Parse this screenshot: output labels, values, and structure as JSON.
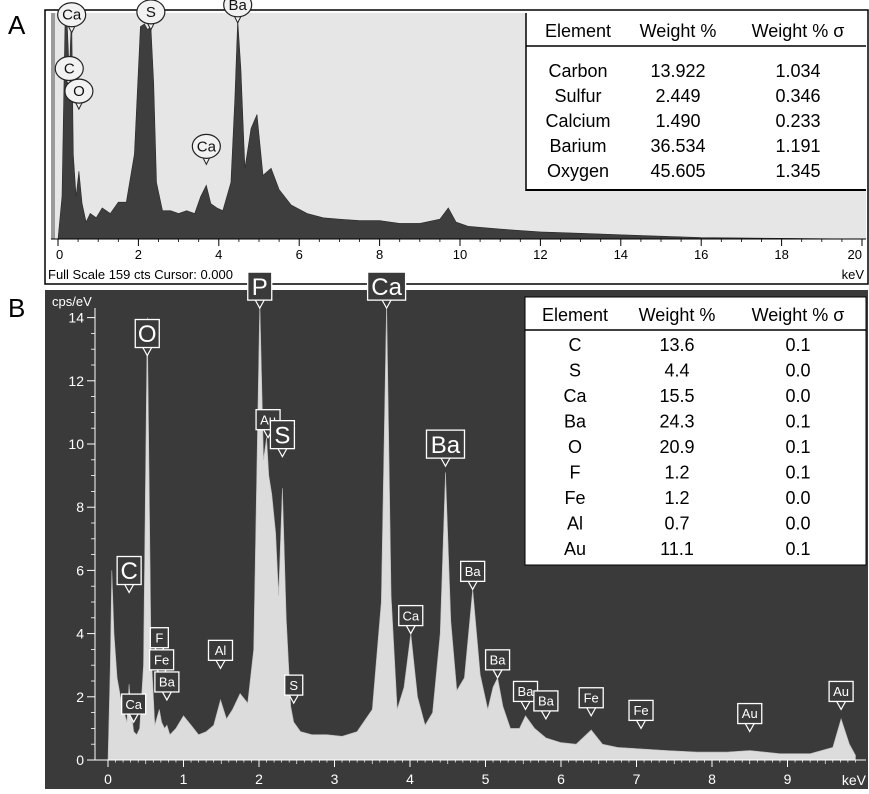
{
  "panel_labels": {
    "a": "A",
    "b": "B"
  },
  "colors": {
    "panel_a_bg": "#e6e6e6",
    "panel_a_fill": "#3e3e3e",
    "panel_b_bg": "#3a3a3a",
    "panel_b_fill": "#dcdcdc",
    "frame": "#000000"
  },
  "panel_a": {
    "status_text": "Full Scale 159 cts Cursor: 0.000",
    "unit_label": "keV",
    "table": {
      "headers": [
        "Element",
        "Weight %",
        "Weight % σ"
      ],
      "rows": [
        [
          "Carbon",
          "13.922",
          "1.034"
        ],
        [
          "Sulfur",
          "2.449",
          "0.346"
        ],
        [
          "Calcium",
          "1.490",
          "0.233"
        ],
        [
          "Barium",
          "36.534",
          "1.191"
        ],
        [
          "Oxygen",
          "45.605",
          "1.345"
        ]
      ]
    },
    "peak_labels": [
      {
        "text": "Ca",
        "x": 0.34,
        "y": 150
      },
      {
        "text": "C",
        "x": 0.28,
        "y": 112
      },
      {
        "text": "O",
        "x": 0.52,
        "y": 96
      },
      {
        "text": "S",
        "x": 2.31,
        "y": 152
      },
      {
        "text": "Ba",
        "x": 4.47,
        "y": 157
      },
      {
        "text": "Ca",
        "x": 3.69,
        "y": 57
      }
    ]
  },
  "panel_b": {
    "y_unit_label": "cps/eV",
    "x_unit_label": "keV",
    "table": {
      "headers": [
        "Element",
        "Weight %",
        "Weight % σ"
      ],
      "rows": [
        [
          "C",
          "13.6",
          "0.1"
        ],
        [
          "S",
          "4.4",
          "0.0"
        ],
        [
          "Ca",
          "15.5",
          "0.0"
        ],
        [
          "Ba",
          "24.3",
          "0.1"
        ],
        [
          "O",
          "20.9",
          "0.1"
        ],
        [
          "F",
          "1.2",
          "0.1"
        ],
        [
          "Fe",
          "1.2",
          "0.0"
        ],
        [
          "Al",
          "0.7",
          "0.0"
        ],
        [
          "Au",
          "11.1",
          "0.1"
        ]
      ]
    },
    "peak_labels": [
      {
        "text": "O",
        "x": 0.52,
        "y": 12.8,
        "size": "large"
      },
      {
        "text": "P",
        "x": 2.01,
        "y": 14.3,
        "size": "large"
      },
      {
        "text": "Ca",
        "x": 3.69,
        "y": 14.3,
        "size": "large"
      },
      {
        "text": "Au",
        "x": 2.12,
        "y": 10.2,
        "size": "small"
      },
      {
        "text": "S",
        "x": 2.31,
        "y": 9.6,
        "size": "large"
      },
      {
        "text": "Ba",
        "x": 4.47,
        "y": 9.3,
        "size": "large"
      },
      {
        "text": "C",
        "x": 0.28,
        "y": 5.3,
        "size": "large"
      },
      {
        "text": "F",
        "x": 0.68,
        "y": 3.3,
        "size": "small"
      },
      {
        "text": "Fe",
        "x": 0.71,
        "y": 2.6,
        "size": "small"
      },
      {
        "text": "Ba",
        "x": 0.78,
        "y": 1.9,
        "size": "small"
      },
      {
        "text": "Ca",
        "x": 0.34,
        "y": 1.2,
        "size": "small"
      },
      {
        "text": "Al",
        "x": 1.49,
        "y": 2.9,
        "size": "small"
      },
      {
        "text": "S",
        "x": 2.46,
        "y": 1.8,
        "size": "small"
      },
      {
        "text": "Ca",
        "x": 4.01,
        "y": 4.0,
        "size": "small"
      },
      {
        "text": "Ba",
        "x": 4.83,
        "y": 5.4,
        "size": "small"
      },
      {
        "text": "Ba",
        "x": 5.16,
        "y": 2.6,
        "size": "small"
      },
      {
        "text": "Ba",
        "x": 5.53,
        "y": 1.6,
        "size": "small"
      },
      {
        "text": "Ba",
        "x": 5.8,
        "y": 1.3,
        "size": "small"
      },
      {
        "text": "Fe",
        "x": 6.4,
        "y": 1.4,
        "size": "small"
      },
      {
        "text": "Fe",
        "x": 7.06,
        "y": 1.0,
        "size": "small"
      },
      {
        "text": "Au",
        "x": 8.5,
        "y": 0.9,
        "size": "small"
      },
      {
        "text": "Au",
        "x": 9.71,
        "y": 1.6,
        "size": "small"
      }
    ]
  },
  "chart_data": [
    {
      "type": "area",
      "panel": "A",
      "title": "",
      "xlabel": "keV",
      "ylabel": "",
      "xlim": [
        0,
        20
      ],
      "ylim": [
        0,
        159
      ],
      "x_ticks": [
        0,
        2,
        4,
        6,
        8,
        10,
        12,
        14,
        16,
        18,
        20
      ],
      "x": [
        0.0,
        0.1,
        0.18,
        0.22,
        0.26,
        0.28,
        0.31,
        0.34,
        0.38,
        0.45,
        0.52,
        0.6,
        0.7,
        0.8,
        0.95,
        1.1,
        1.3,
        1.5,
        1.7,
        1.9,
        2.05,
        2.15,
        2.23,
        2.31,
        2.38,
        2.45,
        2.6,
        2.8,
        3.0,
        3.2,
        3.4,
        3.55,
        3.69,
        3.8,
        3.95,
        4.1,
        4.3,
        4.4,
        4.47,
        4.55,
        4.65,
        4.8,
        4.95,
        5.1,
        5.3,
        5.5,
        5.8,
        6.2,
        6.6,
        7.0,
        7.5,
        8.0,
        8.5,
        9.0,
        9.5,
        9.71,
        9.9,
        10.2,
        11.0,
        12.0,
        13.0,
        14.0,
        15.0,
        16.0,
        20.0
      ],
      "y": [
        0,
        30,
        160,
        160,
        130,
        110,
        140,
        155,
        60,
        30,
        48,
        25,
        12,
        18,
        15,
        22,
        18,
        26,
        26,
        60,
        150,
        152,
        148,
        150,
        110,
        40,
        20,
        20,
        18,
        20,
        18,
        30,
        38,
        25,
        22,
        20,
        40,
        100,
        155,
        120,
        50,
        78,
        88,
        45,
        50,
        35,
        24,
        18,
        15,
        14,
        13,
        13,
        11,
        11,
        14,
        22,
        12,
        9,
        7,
        5,
        4,
        3,
        2,
        1,
        0
      ],
      "table": {
        "columns": [
          "Element",
          "Weight %",
          "Weight % σ"
        ],
        "rows": [
          [
            "Carbon",
            13.922,
            1.034
          ],
          [
            "Sulfur",
            2.449,
            0.346
          ],
          [
            "Calcium",
            1.49,
            0.233
          ],
          [
            "Barium",
            36.534,
            1.191
          ],
          [
            "Oxygen",
            45.605,
            1.345
          ]
        ]
      }
    },
    {
      "type": "area",
      "panel": "B",
      "title": "",
      "xlabel": "keV",
      "ylabel": "cps/eV",
      "xlim": [
        -0.1,
        9.9
      ],
      "ylim": [
        0,
        14.5
      ],
      "x_ticks": [
        0,
        1,
        2,
        3,
        4,
        5,
        6,
        7,
        8,
        9
      ],
      "y_ticks": [
        0,
        2,
        4,
        6,
        8,
        10,
        12,
        14
      ],
      "x": [
        0.0,
        0.03,
        0.05,
        0.08,
        0.12,
        0.18,
        0.25,
        0.28,
        0.3,
        0.34,
        0.38,
        0.42,
        0.47,
        0.52,
        0.57,
        0.62,
        0.68,
        0.71,
        0.75,
        0.78,
        0.82,
        0.9,
        1.0,
        1.1,
        1.2,
        1.3,
        1.4,
        1.49,
        1.57,
        1.65,
        1.75,
        1.85,
        1.93,
        2.01,
        2.06,
        2.1,
        2.13,
        2.17,
        2.22,
        2.26,
        2.31,
        2.36,
        2.42,
        2.46,
        2.55,
        2.7,
        2.9,
        3.1,
        3.3,
        3.5,
        3.62,
        3.69,
        3.75,
        3.83,
        3.92,
        4.01,
        4.1,
        4.2,
        4.3,
        4.4,
        4.47,
        4.54,
        4.62,
        4.72,
        4.83,
        4.93,
        5.03,
        5.1,
        5.16,
        5.23,
        5.33,
        5.45,
        5.53,
        5.65,
        5.8,
        6.0,
        6.2,
        6.4,
        6.55,
        6.75,
        7.06,
        7.4,
        7.8,
        8.2,
        8.5,
        8.9,
        9.3,
        9.6,
        9.71,
        9.82,
        9.9
      ],
      "y": [
        0,
        3.0,
        6.0,
        4.0,
        2.6,
        1.8,
        1.2,
        2.4,
        1.7,
        0.9,
        0.8,
        1.0,
        3.0,
        14.0,
        3.5,
        1.1,
        1.6,
        1.2,
        1.0,
        1.1,
        0.8,
        1.0,
        1.4,
        1.1,
        0.8,
        0.9,
        1.1,
        1.9,
        1.3,
        1.6,
        2.1,
        1.8,
        3.5,
        14.5,
        9.5,
        10.2,
        9.0,
        8.4,
        7.2,
        5.2,
        8.6,
        4.5,
        1.7,
        1.2,
        0.9,
        0.8,
        0.8,
        0.75,
        0.9,
        1.6,
        5.0,
        14.5,
        5.2,
        1.6,
        2.3,
        4.0,
        2.0,
        1.1,
        1.5,
        4.0,
        9.1,
        4.4,
        2.2,
        2.6,
        5.4,
        2.7,
        1.6,
        2.3,
        2.6,
        1.7,
        1.0,
        1.0,
        1.4,
        1.0,
        0.7,
        0.55,
        0.5,
        0.95,
        0.5,
        0.4,
        0.35,
        0.3,
        0.25,
        0.25,
        0.3,
        0.2,
        0.2,
        0.4,
        1.3,
        0.5,
        0.15
      ],
      "table": {
        "columns": [
          "Element",
          "Weight %",
          "Weight % σ"
        ],
        "rows": [
          [
            "C",
            13.6,
            0.1
          ],
          [
            "S",
            4.4,
            0.0
          ],
          [
            "Ca",
            15.5,
            0.0
          ],
          [
            "Ba",
            24.3,
            0.1
          ],
          [
            "O",
            20.9,
            0.1
          ],
          [
            "F",
            1.2,
            0.1
          ],
          [
            "Fe",
            1.2,
            0.0
          ],
          [
            "Al",
            0.7,
            0.0
          ],
          [
            "Au",
            11.1,
            0.1
          ]
        ]
      }
    }
  ]
}
